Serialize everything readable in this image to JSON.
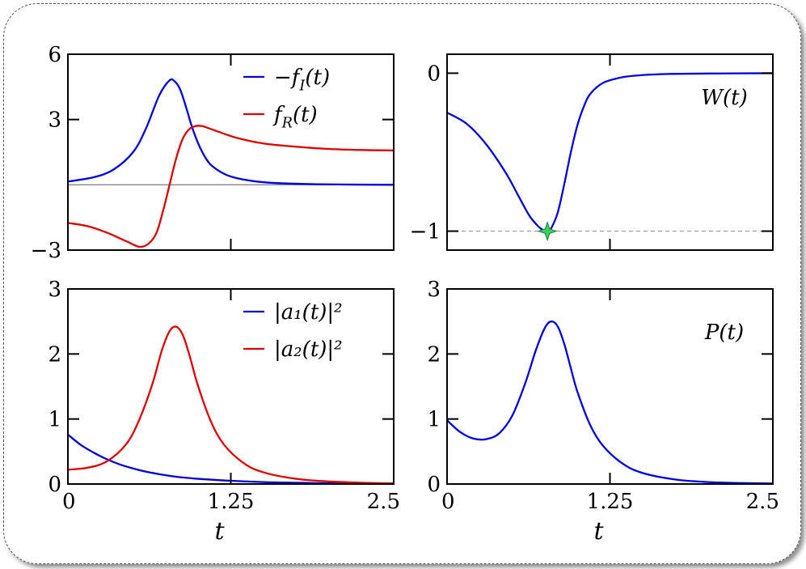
{
  "chart_data": [
    {
      "id": "top-left",
      "type": "line",
      "xlim": [
        0,
        2.5
      ],
      "ylim": [
        -3,
        6
      ],
      "yticks": [
        -3,
        3,
        6
      ],
      "ytick_labels": [
        "−3",
        "3",
        "6"
      ],
      "xticks": [
        1.25
      ],
      "xtick_labels": [],
      "zero_line": true,
      "legend": "top-right",
      "legend_entries": [
        {
          "label": "−f_I(t)",
          "color": "#0000dd"
        },
        {
          "label": "f_R(t)",
          "color": "#dd0000"
        }
      ],
      "series": [
        {
          "name": "−f_I(t)",
          "color": "#0000dd",
          "x": [
            0,
            0.2,
            0.35,
            0.5,
            0.6,
            0.7,
            0.78,
            0.82,
            0.86,
            0.9,
            0.95,
            1.0,
            1.05,
            1.1,
            1.2,
            1.3,
            1.45,
            1.6,
            1.8,
            2.0,
            2.2,
            2.5
          ],
          "y": [
            0.15,
            0.35,
            0.7,
            1.5,
            2.6,
            4.1,
            4.8,
            4.75,
            4.4,
            3.7,
            2.7,
            1.9,
            1.3,
            0.9,
            0.5,
            0.3,
            0.15,
            0.08,
            0.04,
            0.02,
            0.01,
            0.0
          ]
        },
        {
          "name": "f_R(t)",
          "color": "#dd0000",
          "x": [
            0,
            0.15,
            0.3,
            0.45,
            0.55,
            0.62,
            0.68,
            0.73,
            0.78,
            0.83,
            0.88,
            0.93,
            0.98,
            1.03,
            1.08,
            1.15,
            1.3,
            1.5,
            1.75,
            2.0,
            2.25,
            2.5
          ],
          "y": [
            -1.75,
            -1.9,
            -2.2,
            -2.6,
            -2.85,
            -2.7,
            -2.2,
            -1.2,
            0.0,
            1.2,
            2.1,
            2.55,
            2.7,
            2.7,
            2.6,
            2.45,
            2.15,
            1.9,
            1.75,
            1.65,
            1.6,
            1.58
          ]
        }
      ]
    },
    {
      "id": "top-right",
      "type": "line",
      "xlim": [
        0,
        2.5
      ],
      "ylim": [
        -1.12,
        0.12
      ],
      "yticks": [
        -1,
        0
      ],
      "ytick_labels": [
        "−1",
        "0"
      ],
      "xticks": [
        1.25
      ],
      "xtick_labels": [],
      "ref_line": -1,
      "marker": {
        "x": 0.77,
        "y": -1
      },
      "annotation": "W(t)",
      "series": [
        {
          "name": "W(t)",
          "color": "#0000dd",
          "x": [
            0,
            0.15,
            0.3,
            0.45,
            0.55,
            0.63,
            0.7,
            0.74,
            0.77,
            0.8,
            0.85,
            0.9,
            0.95,
            1.0,
            1.05,
            1.1,
            1.2,
            1.35,
            1.5,
            1.7,
            2.0,
            2.5
          ],
          "y": [
            -0.25,
            -0.32,
            -0.45,
            -0.63,
            -0.78,
            -0.9,
            -0.97,
            -0.995,
            -1.0,
            -0.98,
            -0.88,
            -0.7,
            -0.5,
            -0.33,
            -0.21,
            -0.13,
            -0.06,
            -0.025,
            -0.012,
            -0.005,
            -0.002,
            0.0
          ]
        }
      ]
    },
    {
      "id": "bottom-left",
      "type": "line",
      "xlim": [
        0,
        2.5
      ],
      "ylim": [
        0,
        3
      ],
      "yticks": [
        0,
        1,
        2,
        3
      ],
      "ytick_labels": [
        "0",
        "1",
        "2",
        "3"
      ],
      "xticks": [
        0,
        1.25,
        2.5
      ],
      "xtick_labels": [
        "0",
        "1.25",
        "2.5"
      ],
      "xlabel": "t",
      "legend": "top-right",
      "legend_entries": [
        {
          "label": "|a₁(t)|²",
          "color": "#0000dd"
        },
        {
          "label": "|a₂(t)|²",
          "color": "#dd0000"
        }
      ],
      "series": [
        {
          "name": "|a₁(t)|²",
          "color": "#0000dd",
          "x": [
            0,
            0.1,
            0.2,
            0.3,
            0.4,
            0.5,
            0.6,
            0.8,
            1.0,
            1.25,
            1.5,
            1.75,
            2.0,
            2.25,
            2.5
          ],
          "y": [
            0.76,
            0.6,
            0.48,
            0.38,
            0.3,
            0.24,
            0.19,
            0.12,
            0.08,
            0.05,
            0.03,
            0.02,
            0.012,
            0.008,
            0.005
          ]
        },
        {
          "name": "|a₂(t)|²",
          "color": "#dd0000",
          "x": [
            0,
            0.15,
            0.3,
            0.45,
            0.55,
            0.65,
            0.72,
            0.78,
            0.83,
            0.88,
            0.93,
            1.0,
            1.1,
            1.2,
            1.35,
            1.5,
            1.75,
            2.0,
            2.25,
            2.5
          ],
          "y": [
            0.22,
            0.25,
            0.35,
            0.62,
            1.0,
            1.55,
            2.05,
            2.35,
            2.42,
            2.3,
            2.0,
            1.5,
            0.95,
            0.6,
            0.32,
            0.18,
            0.08,
            0.04,
            0.02,
            0.01
          ]
        }
      ]
    },
    {
      "id": "bottom-right",
      "type": "line",
      "xlim": [
        0,
        2.5
      ],
      "ylim": [
        0,
        3
      ],
      "yticks": [
        0,
        1,
        2,
        3
      ],
      "ytick_labels": [
        "0",
        "1",
        "2",
        "3"
      ],
      "xticks": [
        0,
        1.25,
        2.5
      ],
      "xtick_labels": [
        "0",
        "1.25",
        "2.5"
      ],
      "xlabel": "t",
      "annotation": "P(t)",
      "series": [
        {
          "name": "P(t)",
          "color": "#0000dd",
          "x": [
            0,
            0.1,
            0.2,
            0.3,
            0.4,
            0.5,
            0.6,
            0.68,
            0.75,
            0.8,
            0.85,
            0.9,
            0.95,
            1.0,
            1.1,
            1.2,
            1.35,
            1.5,
            1.75,
            2.0,
            2.25,
            2.5
          ],
          "y": [
            0.98,
            0.8,
            0.7,
            0.69,
            0.78,
            1.05,
            1.55,
            2.05,
            2.4,
            2.5,
            2.42,
            2.15,
            1.78,
            1.42,
            0.9,
            0.58,
            0.31,
            0.17,
            0.07,
            0.03,
            0.015,
            0.008
          ]
        }
      ]
    }
  ]
}
